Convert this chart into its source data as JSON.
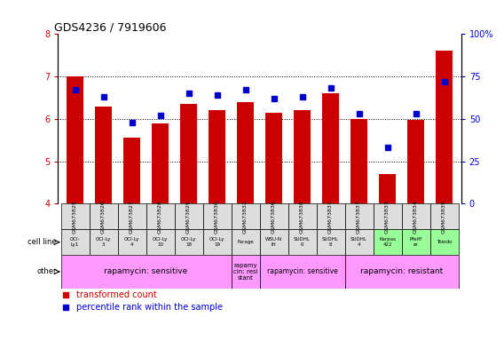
{
  "title": "GDS4236 / 7919606",
  "samples": [
    "GSM673825",
    "GSM673826",
    "GSM673827",
    "GSM673828",
    "GSM673829",
    "GSM673830",
    "GSM673832",
    "GSM673836",
    "GSM673838",
    "GSM673831",
    "GSM673837",
    "GSM673833",
    "GSM673834",
    "GSM673835"
  ],
  "transformed_count": [
    7.0,
    6.3,
    5.55,
    5.9,
    6.35,
    6.2,
    6.4,
    6.15,
    6.2,
    6.6,
    6.0,
    4.7,
    5.98,
    7.6
  ],
  "percentile_rank": [
    67,
    63,
    48,
    52,
    65,
    64,
    67,
    62,
    63,
    68,
    53,
    33,
    53,
    72
  ],
  "ylim": [
    4,
    8
  ],
  "yticks": [
    4,
    5,
    6,
    7,
    8
  ],
  "y2lim": [
    0,
    100
  ],
  "y2ticks": [
    0,
    25,
    50,
    75,
    100
  ],
  "y2ticklabels": [
    "0",
    "25",
    "50",
    "75",
    "100%"
  ],
  "bar_color": "#cc0000",
  "dot_color": "#0000cc",
  "cell_line_labels": [
    "OCI-\nLy1",
    "OCI-Ly\n3",
    "OCI-Ly\n4",
    "OCI-Ly\n10",
    "OCI-Ly\n18",
    "OCI-Ly\n19",
    "Farage",
    "WSU-N\nIH",
    "SUDHL\n6",
    "SUDHL\n8",
    "SUDHL\n4",
    "Karpas\n422",
    "Pfeiff\ner",
    "Toledo"
  ],
  "cell_line_colors": [
    "#dddddd",
    "#dddddd",
    "#dddddd",
    "#dddddd",
    "#dddddd",
    "#dddddd",
    "#dddddd",
    "#dddddd",
    "#dddddd",
    "#dddddd",
    "#dddddd",
    "#99ff99",
    "#99ff99",
    "#99ff99"
  ],
  "other_data": [
    {
      "span": [
        0,
        5
      ],
      "text": "rapamycin: sensitive",
      "fontsize": 6.5
    },
    {
      "span": [
        6,
        6
      ],
      "text": "rapamy\ncin: resi\nstant",
      "fontsize": 5.0
    },
    {
      "span": [
        7,
        9
      ],
      "text": "rapamycin: sensitive",
      "fontsize": 5.5
    },
    {
      "span": [
        10,
        13
      ],
      "text": "rapamycin: resistant",
      "fontsize": 6.5
    }
  ],
  "other_color": "#ff99ff",
  "legend_red_label": "transformed count",
  "legend_blue_label": "percentile rank within the sample",
  "bar_color_left": "#cc0000",
  "y2label_color": "#0000cc",
  "ylabel_color": "#cc0000"
}
